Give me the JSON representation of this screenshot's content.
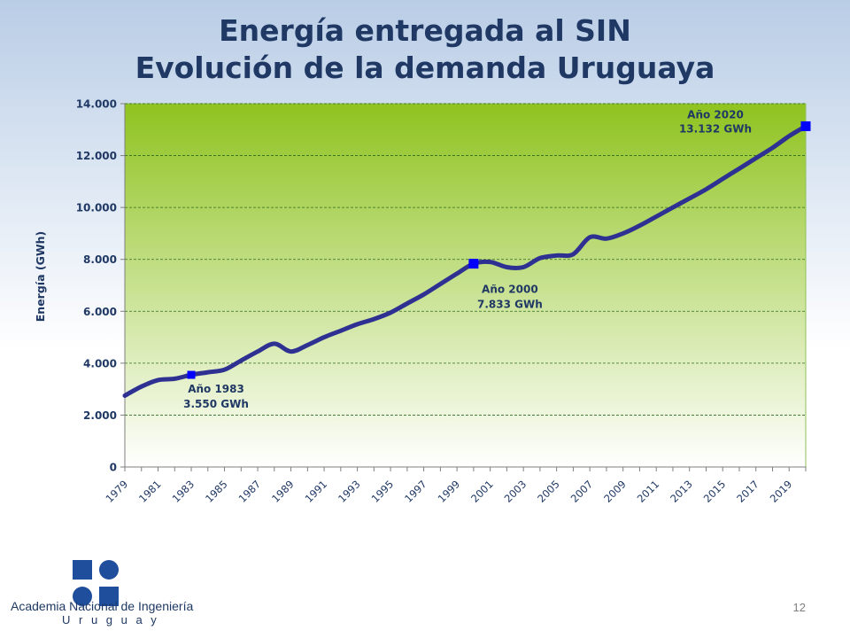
{
  "slide": {
    "title_line1": "Energía entregada al SIN",
    "title_line2": "Evolución de la demanda Uruguaya",
    "page_number": "12"
  },
  "logo": {
    "name": "Academia Nacional de Ingeniería",
    "country": "U r u g u a y"
  },
  "colors": {
    "title": "#1f3864",
    "line": "#2e3192",
    "marker": "#0000ff",
    "plot_top": "#8fc31f",
    "plot_bottom": "#ffffff",
    "gridline": "#2d6a1f",
    "label": "#1f3864"
  },
  "chart_data": {
    "type": "line",
    "ylabel": "Energía (GWh)",
    "xlabel": "",
    "ylim": [
      0,
      14000
    ],
    "yticks": [
      0,
      2000,
      4000,
      6000,
      8000,
      10000,
      12000,
      14000
    ],
    "ytick_labels": [
      "0",
      "2.000",
      "4.000",
      "6.000",
      "8.000",
      "10.000",
      "12.000",
      "14.000"
    ],
    "xlim": [
      1979,
      2020
    ],
    "xtick_labels": [
      "1979",
      "1981",
      "1983",
      "1985",
      "1987",
      "1989",
      "1991",
      "1993",
      "1995",
      "1997",
      "1999",
      "2001",
      "2003",
      "2005",
      "2007",
      "2009",
      "2011",
      "2013",
      "2015",
      "2017",
      "2019"
    ],
    "grid": true,
    "series": [
      {
        "x": [
          1979,
          1980,
          1981,
          1982,
          1983,
          1984,
          1985,
          1986,
          1987,
          1988,
          1989,
          1990,
          1991,
          1992,
          1993,
          1994,
          1995,
          1996,
          1997,
          1998,
          1999,
          2000,
          2001,
          2002,
          2003,
          2004,
          2005,
          2006,
          2007,
          2008,
          2009,
          2010,
          2011,
          2012,
          2013,
          2014,
          2015,
          2016,
          2017,
          2018,
          2019,
          2020
        ],
        "y": [
          2750,
          3100,
          3350,
          3400,
          3550,
          3650,
          3750,
          4100,
          4450,
          4750,
          4450,
          4700,
          5000,
          5250,
          5500,
          5700,
          5950,
          6300,
          6650,
          7050,
          7450,
          7833,
          7900,
          7700,
          7700,
          8050,
          8150,
          8200,
          8850,
          8800,
          9000,
          9300,
          9650,
          10000,
          10350,
          10700,
          11100,
          11500,
          11900,
          12300,
          12750,
          13132
        ]
      }
    ],
    "annotations": [
      {
        "x": 1983,
        "y": 3550,
        "line1": "Año 1983",
        "line2": "3.550 GWh",
        "position": "below-right"
      },
      {
        "x": 2000,
        "y": 7833,
        "line1": "Año 2000",
        "line2": "7.833 GWh",
        "position": "below-right"
      },
      {
        "x": 2020,
        "y": 13132,
        "line1": "Año 2020",
        "line2": "13.132 GWh",
        "position": "above-left"
      }
    ]
  }
}
